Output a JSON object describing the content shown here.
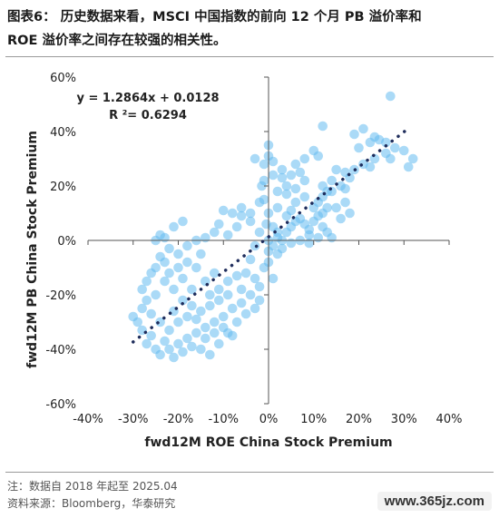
{
  "title_lines": [
    "图表6： 历史数据来看，MSCI 中国指数的前向 12 个月 PB 溢价率和",
    "ROE 溢价率之间存在较强的相关性。"
  ],
  "footer": {
    "note": "注：数据自 2018 年起至 2025.04",
    "source": "资料来源：Bloomberg，华泰研究"
  },
  "watermark": "www.365jz.com",
  "chart_data": {
    "type": "scatter",
    "title": "",
    "xlabel": "fwd12M ROE China Stock Premium",
    "ylabel": "fwd12M PB China Stock Premium",
    "xlim": [
      -0.4,
      0.4
    ],
    "ylim": [
      -0.6,
      0.6
    ],
    "x_ticks": [
      -0.4,
      -0.3,
      -0.2,
      -0.1,
      0,
      0.1,
      0.2,
      0.3,
      0.4
    ],
    "x_tick_labels": [
      "-40%",
      "-30%",
      "-20%",
      "-10%",
      "0%",
      "10%",
      "20%",
      "30%",
      "40%"
    ],
    "y_ticks": [
      -0.6,
      -0.4,
      -0.2,
      0,
      0.2,
      0.4,
      0.6
    ],
    "y_tick_labels": [
      "-60%",
      "-40%",
      "-20%",
      "0%",
      "20%",
      "40%",
      "60%"
    ],
    "grid": false,
    "equation": "y = 1.2864x + 0.0128",
    "r_squared": "R ²= 0.6294",
    "trendline": {
      "slope": 1.2864,
      "intercept": 0.0128,
      "x_range": [
        -0.3,
        0.31
      ],
      "style": "dotted",
      "color": "#1f2d5c"
    },
    "point_color": "#64bcf0",
    "points": [
      [
        0.27,
        0.53
      ],
      [
        0.12,
        0.42
      ],
      [
        0.21,
        0.41
      ],
      [
        0.19,
        0.39
      ],
      [
        0.235,
        0.38
      ],
      [
        0.245,
        0.37
      ],
      [
        0.26,
        0.36
      ],
      [
        0.225,
        0.36
      ],
      [
        0.28,
        0.34
      ],
      [
        0.26,
        0.32
      ],
      [
        0.3,
        0.33
      ],
      [
        0.2,
        0.34
      ],
      [
        0.32,
        0.3
      ],
      [
        0.31,
        0.27
      ],
      [
        0.27,
        0.3
      ],
      [
        0.235,
        0.3
      ],
      [
        0.21,
        0.28
      ],
      [
        0.225,
        0.27
      ],
      [
        0.19,
        0.26
      ],
      [
        0.17,
        0.25
      ],
      [
        0.15,
        0.26
      ],
      [
        0.18,
        0.23
      ],
      [
        0.16,
        0.2
      ],
      [
        0.13,
        0.18
      ],
      [
        0.14,
        0.22
      ],
      [
        0.12,
        0.16
      ],
      [
        0.11,
        0.14
      ],
      [
        0.1,
        0.12
      ],
      [
        0.12,
        0.1
      ],
      [
        0.15,
        0.12
      ],
      [
        0.17,
        0.14
      ],
      [
        0.07,
        0.25
      ],
      [
        0.05,
        0.24
      ],
      [
        0.03,
        0.23
      ],
      [
        0.08,
        0.22
      ],
      [
        0.06,
        0.19
      ],
      [
        0.04,
        0.17
      ],
      [
        0.1,
        0.33
      ],
      [
        0.11,
        0.31
      ],
      [
        0.08,
        0.3
      ],
      [
        0.06,
        0.28
      ],
      [
        0.04,
        0.2
      ],
      [
        0.02,
        0.18
      ],
      [
        0.0,
        0.35
      ],
      [
        0.0,
        0.31
      ],
      [
        0.01,
        0.29
      ],
      [
        -0.03,
        0.3
      ],
      [
        -0.01,
        0.28
      ],
      [
        -0.015,
        0.2
      ],
      [
        -0.01,
        0.15
      ],
      [
        0.0,
        0.1
      ],
      [
        -0.005,
        0.06
      ],
      [
        0.01,
        0.05
      ],
      [
        0.02,
        0.03
      ],
      [
        0.0,
        0.0
      ],
      [
        0.01,
        -0.02
      ],
      [
        0.02,
        0.01
      ],
      [
        0.03,
        0.0
      ],
      [
        0.04,
        0.03
      ],
      [
        0.05,
        0.05
      ],
      [
        0.06,
        0.07
      ],
      [
        0.07,
        0.08
      ],
      [
        0.08,
        0.06
      ],
      [
        0.09,
        0.04
      ],
      [
        0.1,
        0.07
      ],
      [
        0.11,
        0.09
      ],
      [
        0.12,
        0.05
      ],
      [
        0.13,
        0.03
      ],
      [
        0.14,
        0.01
      ],
      [
        0.09,
        0.02
      ],
      [
        0.07,
        0.0
      ],
      [
        0.05,
        -0.01
      ],
      [
        0.03,
        -0.03
      ],
      [
        0.02,
        -0.05
      ],
      [
        0.0,
        -0.08
      ],
      [
        0.01,
        -0.14
      ],
      [
        -0.01,
        -0.1
      ],
      [
        -0.03,
        -0.02
      ],
      [
        -0.02,
        0.03
      ],
      [
        -0.04,
        0.07
      ],
      [
        -0.06,
        0.09
      ],
      [
        -0.07,
        0.05
      ],
      [
        -0.09,
        0.02
      ],
      [
        -0.11,
        0.06
      ],
      [
        -0.1,
        0.11
      ],
      [
        -0.08,
        0.1
      ],
      [
        -0.12,
        0.03
      ],
      [
        -0.14,
        0.01
      ],
      [
        -0.16,
        0.0
      ],
      [
        -0.18,
        -0.02
      ],
      [
        -0.2,
        -0.05
      ],
      [
        -0.22,
        -0.03
      ],
      [
        -0.23,
        0.01
      ],
      [
        -0.24,
        0.02
      ],
      [
        -0.21,
        0.05
      ],
      [
        -0.19,
        0.07
      ],
      [
        -0.23,
        -0.08
      ],
      [
        -0.25,
        -0.1
      ],
      [
        -0.26,
        -0.12
      ],
      [
        -0.27,
        -0.15
      ],
      [
        -0.28,
        -0.18
      ],
      [
        -0.25,
        -0.2
      ],
      [
        -0.23,
        -0.15
      ],
      [
        -0.21,
        -0.18
      ],
      [
        -0.19,
        -0.22
      ],
      [
        -0.17,
        -0.24
      ],
      [
        -0.15,
        -0.26
      ],
      [
        -0.13,
        -0.2
      ],
      [
        -0.11,
        -0.18
      ],
      [
        -0.09,
        -0.15
      ],
      [
        -0.07,
        -0.13
      ],
      [
        -0.05,
        -0.12
      ],
      [
        -0.03,
        -0.14
      ],
      [
        -0.02,
        -0.17
      ],
      [
        -0.04,
        -0.2
      ],
      [
        -0.06,
        -0.23
      ],
      [
        -0.08,
        -0.25
      ],
      [
        -0.1,
        -0.28
      ],
      [
        -0.12,
        -0.3
      ],
      [
        -0.14,
        -0.32
      ],
      [
        -0.16,
        -0.34
      ],
      [
        -0.18,
        -0.36
      ],
      [
        -0.2,
        -0.38
      ],
      [
        -0.22,
        -0.4
      ],
      [
        -0.24,
        -0.42
      ],
      [
        -0.21,
        -0.43
      ],
      [
        -0.19,
        -0.41
      ],
      [
        -0.17,
        -0.39
      ],
      [
        -0.15,
        -0.4
      ],
      [
        -0.13,
        -0.42
      ],
      [
        -0.11,
        -0.38
      ],
      [
        -0.09,
        -0.34
      ],
      [
        -0.07,
        -0.3
      ],
      [
        -0.05,
        -0.27
      ],
      [
        -0.03,
        -0.25
      ],
      [
        -0.02,
        -0.22
      ],
      [
        -0.29,
        -0.3
      ],
      [
        -0.28,
        -0.33
      ],
      [
        -0.26,
        -0.35
      ],
      [
        -0.27,
        -0.38
      ],
      [
        -0.25,
        -0.4
      ],
      [
        -0.23,
        -0.37
      ],
      [
        -0.22,
        -0.33
      ],
      [
        -0.24,
        -0.3
      ],
      [
        -0.26,
        -0.27
      ],
      [
        -0.28,
        -0.25
      ],
      [
        -0.2,
        -0.3
      ],
      [
        -0.18,
        -0.28
      ],
      [
        -0.16,
        -0.29
      ],
      [
        -0.14,
        -0.36
      ],
      [
        -0.12,
        -0.34
      ],
      [
        -0.1,
        -0.32
      ],
      [
        -0.08,
        -0.35
      ],
      [
        -0.13,
        -0.24
      ],
      [
        -0.11,
        -0.22
      ],
      [
        -0.09,
        -0.2
      ],
      [
        -0.14,
        -0.15
      ],
      [
        -0.12,
        -0.12
      ],
      [
        -0.16,
        -0.1
      ],
      [
        -0.18,
        -0.08
      ],
      [
        -0.2,
        -0.1
      ],
      [
        -0.22,
        -0.12
      ],
      [
        -0.24,
        -0.06
      ],
      [
        -0.06,
        0.12
      ],
      [
        -0.04,
        0.1
      ],
      [
        -0.02,
        0.14
      ],
      [
        -0.01,
        0.22
      ],
      [
        0.01,
        0.24
      ],
      [
        0.03,
        0.26
      ],
      [
        0.02,
        0.12
      ],
      [
        0.04,
        0.09
      ],
      [
        0.06,
        0.14
      ],
      [
        0.08,
        0.16
      ],
      [
        0.05,
        0.11
      ],
      [
        0.12,
        0.2
      ],
      [
        0.14,
        0.18
      ],
      [
        0.17,
        0.19
      ],
      [
        0.13,
        0.12
      ],
      [
        0.16,
        0.08
      ],
      [
        0.18,
        0.1
      ],
      [
        0.09,
        -0.01
      ],
      [
        0.11,
        0.01
      ],
      [
        -0.15,
        -0.05
      ],
      [
        -0.25,
        0.0
      ],
      [
        -0.27,
        -0.22
      ],
      [
        -0.3,
        -0.28
      ],
      [
        -0.21,
        -0.26
      ],
      [
        -0.17,
        -0.18
      ],
      [
        -0.19,
        -0.14
      ],
      [
        -0.06,
        -0.18
      ],
      [
        -0.04,
        -0.07
      ],
      [
        0.0,
        -0.04
      ]
    ]
  }
}
